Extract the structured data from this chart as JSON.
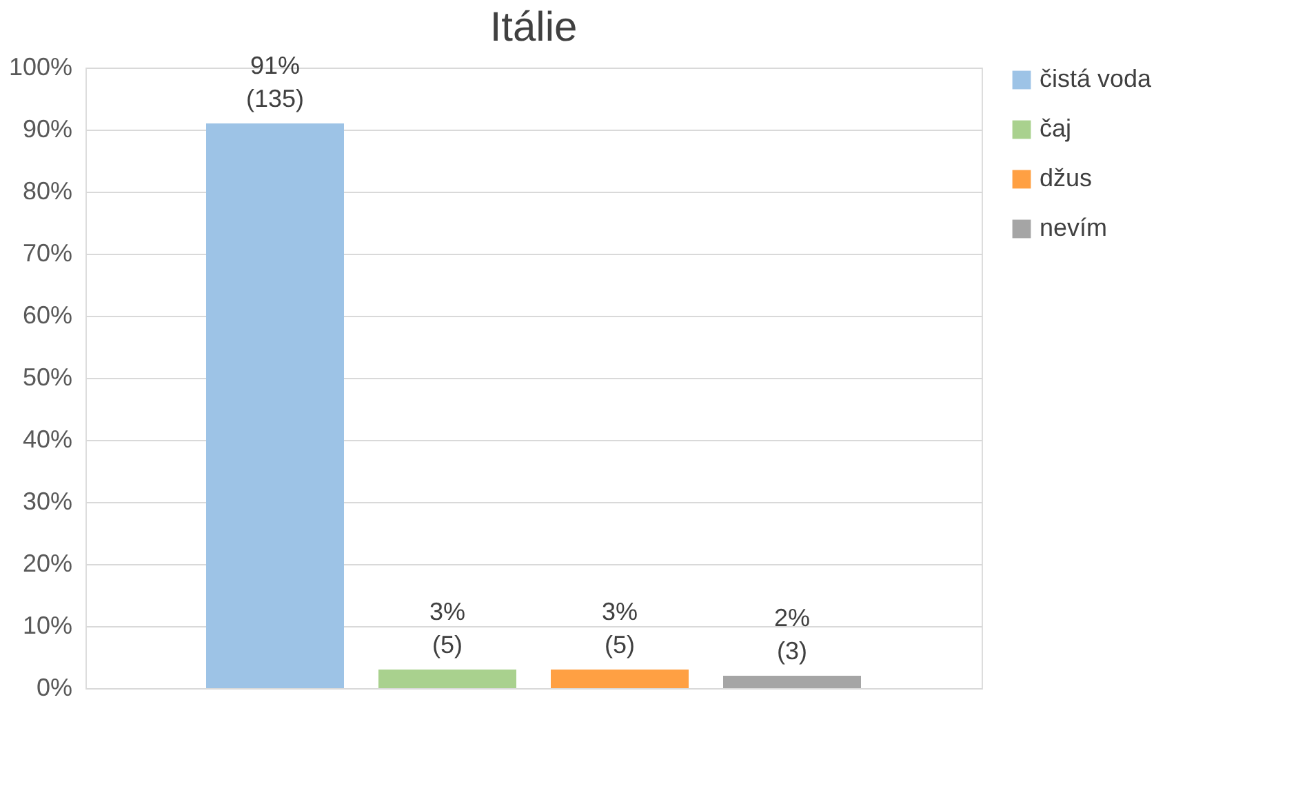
{
  "chart_data": {
    "type": "bar",
    "title": "Itálie",
    "categories": [
      null
    ],
    "series": [
      {
        "name": "čistá voda",
        "color": "#9dc3e6",
        "values": [
          91
        ],
        "value_labels": [
          "91%\n(135)"
        ]
      },
      {
        "name": "čaj",
        "color": "#a9d18e",
        "values": [
          3
        ],
        "value_labels": [
          "3%\n(5)"
        ]
      },
      {
        "name": "džus",
        "color": "#ffa043",
        "values": [
          3
        ],
        "value_labels": [
          "3%\n(5)"
        ]
      },
      {
        "name": "nevím",
        "color": "#a5a5a5",
        "values": [
          2
        ],
        "value_labels": [
          "2%\n(3)"
        ]
      }
    ],
    "ylim": [
      0,
      100
    ],
    "yticks": [
      {
        "value": 0,
        "label": "0%"
      },
      {
        "value": 10,
        "label": "10%"
      },
      {
        "value": 20,
        "label": "20%"
      },
      {
        "value": 30,
        "label": "30%"
      },
      {
        "value": 40,
        "label": "40%"
      },
      {
        "value": 50,
        "label": "50%"
      },
      {
        "value": 60,
        "label": "60%"
      },
      {
        "value": 70,
        "label": "70%"
      },
      {
        "value": 80,
        "label": "80%"
      },
      {
        "value": 90,
        "label": "90%"
      },
      {
        "value": 100,
        "label": "100%"
      }
    ],
    "grid": "y",
    "legend": "right"
  }
}
